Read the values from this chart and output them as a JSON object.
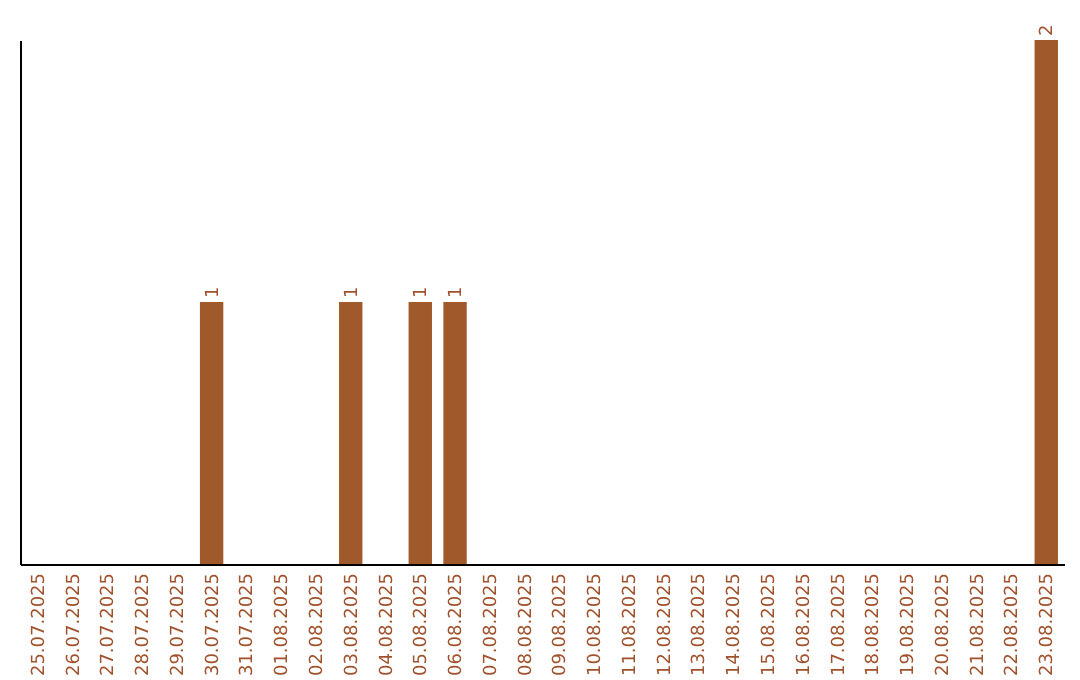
{
  "chart_data": {
    "type": "bar",
    "categories": [
      "25.07.2025",
      "26.07.2025",
      "27.07.2025",
      "28.07.2025",
      "29.07.2025",
      "30.07.2025",
      "31.07.2025",
      "01.08.2025",
      "02.08.2025",
      "03.08.2025",
      "04.08.2025",
      "05.08.2025",
      "06.08.2025",
      "07.08.2025",
      "08.08.2025",
      "09.08.2025",
      "10.08.2025",
      "11.08.2025",
      "12.08.2025",
      "13.08.2025",
      "14.08.2025",
      "15.08.2025",
      "16.08.2025",
      "17.08.2025",
      "18.08.2025",
      "19.08.2025",
      "20.08.2025",
      "21.08.2025",
      "22.08.2025",
      "23.08.2025"
    ],
    "values": [
      0,
      0,
      0,
      0,
      0,
      1,
      0,
      0,
      0,
      1,
      0,
      1,
      1,
      0,
      0,
      0,
      0,
      0,
      0,
      0,
      0,
      0,
      0,
      0,
      0,
      0,
      0,
      0,
      0,
      2
    ],
    "value_labels": [
      null,
      null,
      null,
      null,
      null,
      "1",
      null,
      null,
      null,
      "1",
      null,
      "1",
      "1",
      null,
      null,
      null,
      null,
      null,
      null,
      null,
      null,
      null,
      null,
      null,
      null,
      null,
      null,
      null,
      null,
      "2"
    ],
    "color": "#a0592a",
    "tick_labels": "x",
    "grid": false
  }
}
